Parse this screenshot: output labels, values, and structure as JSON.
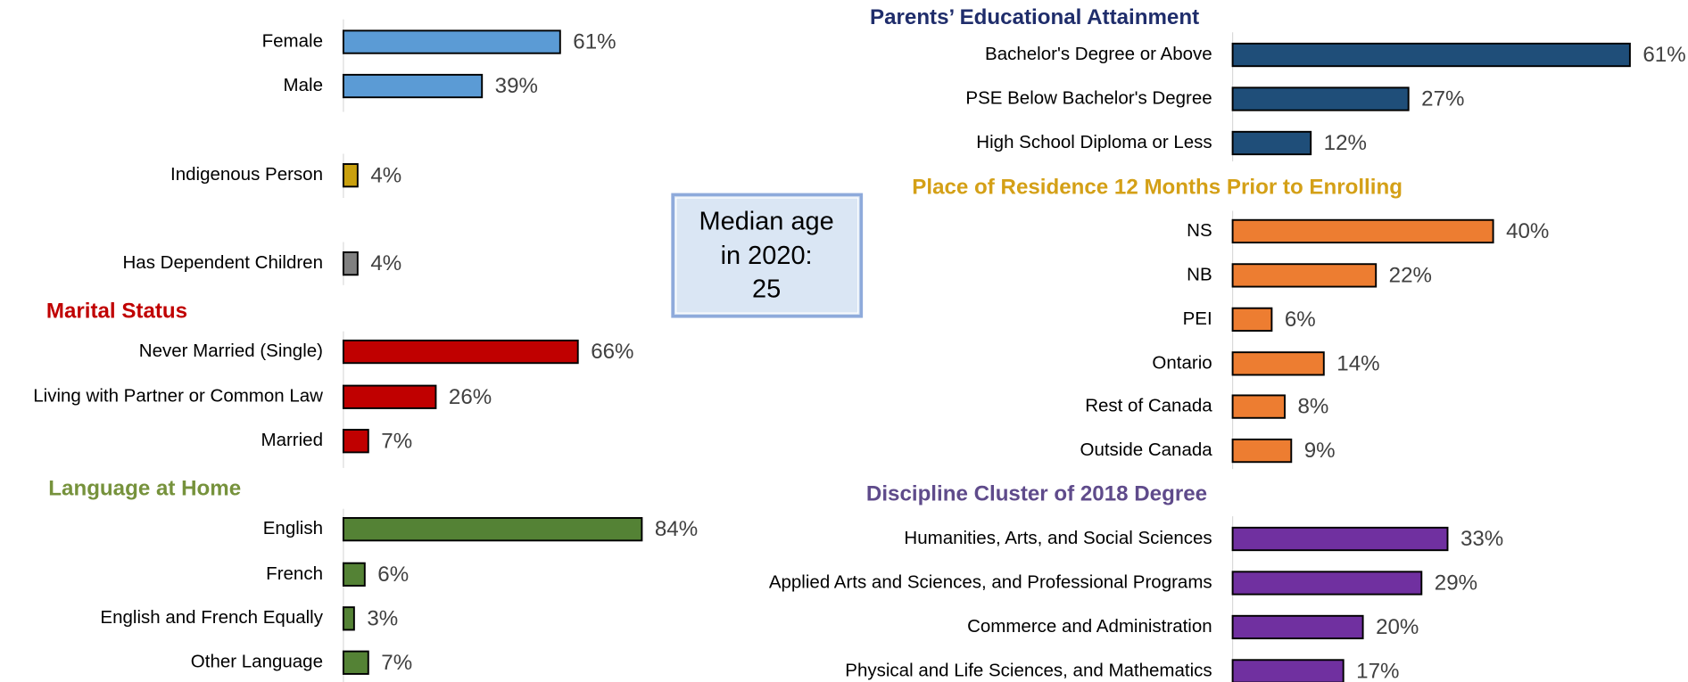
{
  "chart_data": [
    {
      "type": "bar",
      "categories": [
        "Female",
        "Male"
      ],
      "values": [
        61,
        39
      ],
      "value_labels": [
        "61%",
        "39%"
      ],
      "color": "#5b9bd5"
    },
    {
      "type": "bar",
      "categories": [
        "Indigenous Person"
      ],
      "values": [
        4
      ],
      "value_labels": [
        "4%"
      ],
      "color": "#c9a00e"
    },
    {
      "type": "bar",
      "categories": [
        "Has Dependent Children"
      ],
      "values": [
        4
      ],
      "value_labels": [
        "4%"
      ],
      "color": "#808080"
    },
    {
      "type": "bar",
      "title": "Marital Status",
      "title_color": "#c00000",
      "categories": [
        "Never Married (Single)",
        "Living with Partner or Common Law",
        "Married"
      ],
      "values": [
        66,
        26,
        7
      ],
      "value_labels": [
        "66%",
        "26%",
        "7%"
      ],
      "color": "#c00000"
    },
    {
      "type": "bar",
      "title": "Language at Home",
      "title_color": "#76923c",
      "categories": [
        "English",
        "French",
        "English and French Equally",
        "Other Language"
      ],
      "values": [
        84,
        6,
        3,
        7
      ],
      "value_labels": [
        "84%",
        "6%",
        "3%",
        "7%"
      ],
      "color": "#548235"
    },
    {
      "type": "bar",
      "title": "Parents’ Educational Attainment",
      "title_color": "#1f2d6b",
      "categories": [
        "Bachelor's Degree or Above",
        "PSE Below Bachelor's Degree",
        "High School Diploma or Less"
      ],
      "values": [
        61,
        27,
        12
      ],
      "value_labels": [
        "61%",
        "27%",
        "12%"
      ],
      "color": "#1f4e79"
    },
    {
      "type": "bar",
      "title": "Place of Residence 12 Months Prior to Enrolling",
      "title_color": "#d4a017",
      "categories": [
        "NS",
        "NB",
        "PEI",
        "Ontario",
        "Rest of Canada",
        "Outside Canada"
      ],
      "values": [
        40,
        22,
        6,
        14,
        8,
        9
      ],
      "value_labels": [
        "40%",
        "22%",
        "6%",
        "14%",
        "8%",
        "9%"
      ],
      "color": "#ed7d31"
    },
    {
      "type": "bar",
      "title": "Discipline Cluster of 2018 Degree",
      "title_color": "#5f4b8b",
      "categories": [
        "Humanities, Arts, and Social Sciences",
        "Applied Arts and Sciences, and Professional Programs",
        "Commerce and Administration",
        "Physical and Life Sciences, and Mathematics"
      ],
      "values": [
        33,
        29,
        20,
        17
      ],
      "value_labels": [
        "33%",
        "29%",
        "20%",
        "17%"
      ],
      "color": "#7030a0"
    }
  ],
  "annotation": {
    "lines": [
      "Median age",
      "in 2020:",
      "25"
    ]
  }
}
